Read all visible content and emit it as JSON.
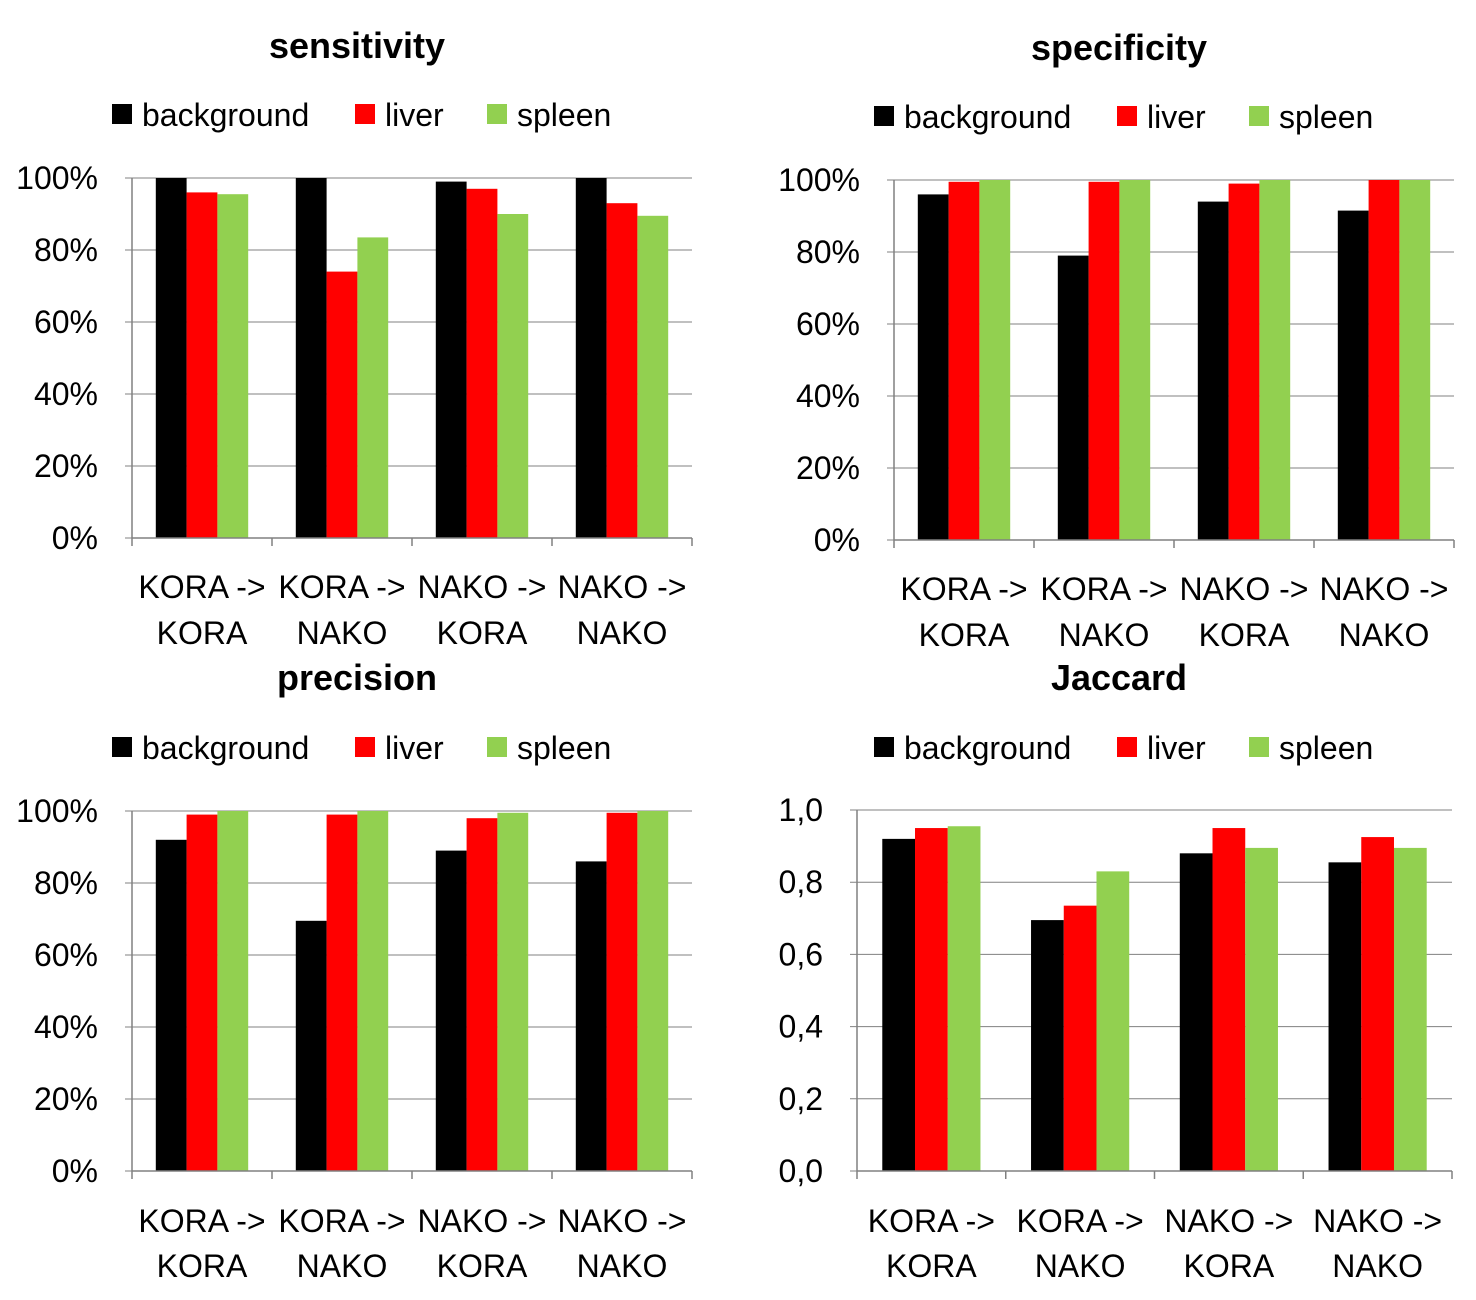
{
  "chart_data": [
    {
      "type": "bar",
      "title": "sensitivity",
      "categories": [
        [
          "KORA ->",
          "KORA"
        ],
        [
          "KORA ->",
          "NAKO"
        ],
        [
          "NAKO ->",
          "KORA"
        ],
        [
          "NAKO ->",
          "NAKO"
        ]
      ],
      "series": [
        {
          "name": "background",
          "color": "#000000",
          "values": [
            1.0,
            1.0,
            0.99,
            1.0
          ]
        },
        {
          "name": "liver",
          "color": "#ff0000",
          "values": [
            0.96,
            0.74,
            0.97,
            0.93
          ]
        },
        {
          "name": "spleen",
          "color": "#92d050",
          "values": [
            0.955,
            0.835,
            0.9,
            0.895
          ]
        }
      ],
      "ylim": [
        0,
        1
      ],
      "yticks": [
        "0%",
        "20%",
        "40%",
        "60%",
        "80%",
        "100%"
      ],
      "grid": true,
      "legend": "top-left"
    },
    {
      "type": "bar",
      "title": "specificity",
      "categories": [
        [
          "KORA ->",
          "KORA"
        ],
        [
          "KORA ->",
          "NAKO"
        ],
        [
          "NAKO ->",
          "KORA"
        ],
        [
          "NAKO ->",
          "NAKO"
        ]
      ],
      "series": [
        {
          "name": "background",
          "color": "#000000",
          "values": [
            0.96,
            0.79,
            0.94,
            0.915
          ]
        },
        {
          "name": "liver",
          "color": "#ff0000",
          "values": [
            0.995,
            0.995,
            0.99,
            1.0
          ]
        },
        {
          "name": "spleen",
          "color": "#92d050",
          "values": [
            1.0,
            1.0,
            1.0,
            1.0
          ]
        }
      ],
      "ylim": [
        0,
        1
      ],
      "yticks": [
        "0%",
        "20%",
        "40%",
        "60%",
        "80%",
        "100%"
      ],
      "grid": true,
      "legend": "top-left"
    },
    {
      "type": "bar",
      "title": "precision",
      "categories": [
        [
          "KORA ->",
          "KORA"
        ],
        [
          "KORA ->",
          "NAKO"
        ],
        [
          "NAKO ->",
          "KORA"
        ],
        [
          "NAKO ->",
          "NAKO"
        ]
      ],
      "series": [
        {
          "name": "background",
          "color": "#000000",
          "values": [
            0.92,
            0.695,
            0.89,
            0.86
          ]
        },
        {
          "name": "liver",
          "color": "#ff0000",
          "values": [
            0.99,
            0.99,
            0.98,
            0.995
          ]
        },
        {
          "name": "spleen",
          "color": "#92d050",
          "values": [
            1.0,
            1.0,
            0.995,
            1.0
          ]
        }
      ],
      "ylim": [
        0,
        1
      ],
      "yticks": [
        "0%",
        "20%",
        "40%",
        "60%",
        "80%",
        "100%"
      ],
      "grid": true,
      "legend": "top-left"
    },
    {
      "type": "bar",
      "title": "Jaccard",
      "categories": [
        [
          "KORA ->",
          "KORA"
        ],
        [
          "KORA ->",
          "NAKO"
        ],
        [
          "NAKO ->",
          "KORA"
        ],
        [
          "NAKO ->",
          "NAKO"
        ]
      ],
      "series": [
        {
          "name": "background",
          "color": "#000000",
          "values": [
            0.92,
            0.695,
            0.88,
            0.855
          ]
        },
        {
          "name": "liver",
          "color": "#ff0000",
          "values": [
            0.95,
            0.735,
            0.95,
            0.925
          ]
        },
        {
          "name": "spleen",
          "color": "#92d050",
          "values": [
            0.955,
            0.83,
            0.895,
            0.895
          ]
        }
      ],
      "ylim": [
        0,
        1
      ],
      "yticks": [
        "0,0",
        "0,2",
        "0,4",
        "0,6",
        "0,8",
        "1,0"
      ],
      "grid": true,
      "legend": "top-left"
    }
  ]
}
